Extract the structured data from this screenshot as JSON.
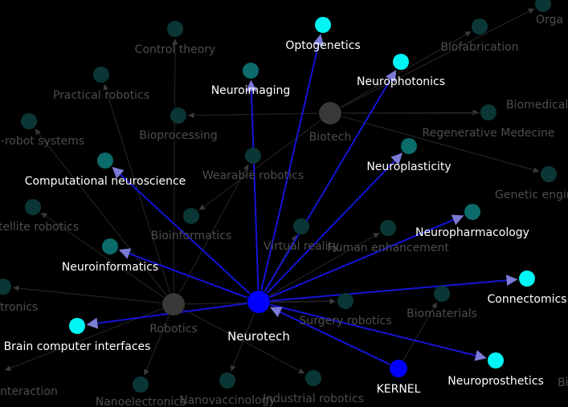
{
  "colors": {
    "background": "#000000",
    "dim_node": "#0b3636",
    "teal_node": "#0c6b6b",
    "cyan_node": "#00f5f5",
    "hub_node": "#383838",
    "focus_node": "#0000ff",
    "focus_edge": "#1414d8",
    "dim_edge": "#222222",
    "bright_text": "#ffffff",
    "dim_text": "#4d4d4d"
  },
  "graph": {
    "focus_node": "Neurotech",
    "nodes": [
      {
        "id": "neurotech",
        "label": "Neurotech",
        "kind": "focus"
      },
      {
        "id": "kernel",
        "label": "KERNEL",
        "kind": "focus-small"
      },
      {
        "id": "optogenetics",
        "label": "Optogenetics",
        "kind": "cyan"
      },
      {
        "id": "neurophotonics",
        "label": "Neurophotonics",
        "kind": "cyan"
      },
      {
        "id": "connectomics",
        "label": "Connectomics",
        "kind": "cyan"
      },
      {
        "id": "neuroprosthetics",
        "label": "Neuroprosthetics",
        "kind": "cyan"
      },
      {
        "id": "bci",
        "label": "Brain computer interfaces",
        "kind": "cyan"
      },
      {
        "id": "neuroimaging",
        "label": "Neuroimaging",
        "kind": "teal"
      },
      {
        "id": "neuroplasticity",
        "label": "Neuroplasticity",
        "kind": "teal"
      },
      {
        "id": "neuropharmacology",
        "label": "Neuropharmacology",
        "kind": "teal"
      },
      {
        "id": "compneuro",
        "label": "Computational neuroscience",
        "kind": "teal"
      },
      {
        "id": "neuroinformatics",
        "label": "Neuroinformatics",
        "kind": "teal"
      },
      {
        "id": "biotech",
        "label": "Biotech",
        "kind": "hub"
      },
      {
        "id": "robotics",
        "label": "Robotics",
        "kind": "hub"
      },
      {
        "id": "control",
        "label": "Control theory",
        "kind": "dim"
      },
      {
        "id": "practical",
        "label": "Practical robotics",
        "kind": "dim"
      },
      {
        "id": "multirobot",
        "label": "i-robot systems",
        "kind": "dim"
      },
      {
        "id": "bioprocessing",
        "label": "Bioprocessing",
        "kind": "dim"
      },
      {
        "id": "wearable",
        "label": "Wearable robotics",
        "kind": "dim"
      },
      {
        "id": "satellite",
        "label": "tellite robotics",
        "kind": "dim"
      },
      {
        "id": "bioinformatics",
        "label": "Bioinformatics",
        "kind": "dim"
      },
      {
        "id": "virtualreality",
        "label": "Virtual reality",
        "kind": "dim"
      },
      {
        "id": "humanenh",
        "label": "Human enhancement",
        "kind": "dim"
      },
      {
        "id": "biofab",
        "label": "Biofabrication",
        "kind": "dim"
      },
      {
        "id": "organ",
        "label": "Orga",
        "kind": "dim"
      },
      {
        "id": "biomedical",
        "label": "Biomedical",
        "kind": "dim"
      },
      {
        "id": "regen",
        "label": "Regenerative Medecine",
        "kind": "dim"
      },
      {
        "id": "genetic",
        "label": "Genetic engin",
        "kind": "dim"
      },
      {
        "id": "surgery",
        "label": "Surgery robotics",
        "kind": "dim"
      },
      {
        "id": "biomaterials",
        "label": "Biomaterials",
        "kind": "dim"
      },
      {
        "id": "tronics",
        "label": "tronics",
        "kind": "dim"
      },
      {
        "id": "interaction",
        "label": "nteraction",
        "kind": "dim"
      },
      {
        "id": "nanoelec",
        "label": "Nanoelectronics",
        "kind": "dim"
      },
      {
        "id": "nanovacc",
        "label": "Nanovaccinology",
        "kind": "dim"
      },
      {
        "id": "industrial",
        "label": "Industrial robotics",
        "kind": "dim"
      },
      {
        "id": "bi_edge",
        "label": "Bi",
        "kind": "dim"
      }
    ],
    "highlighted_edges": [
      {
        "from": "neurotech",
        "to": "optogenetics"
      },
      {
        "from": "neurotech",
        "to": "neurophotonics"
      },
      {
        "from": "neurotech",
        "to": "neuroimaging"
      },
      {
        "from": "neurotech",
        "to": "neuroplasticity"
      },
      {
        "from": "neurotech",
        "to": "neuropharmacology"
      },
      {
        "from": "neurotech",
        "to": "compneuro"
      },
      {
        "from": "neurotech",
        "to": "neuroinformatics"
      },
      {
        "from": "neurotech",
        "to": "connectomics"
      },
      {
        "from": "neurotech",
        "to": "neuroprosthetics"
      },
      {
        "from": "neurotech",
        "to": "bci"
      },
      {
        "from": "kernel",
        "to": "neurotech"
      }
    ],
    "dim_edges": [
      {
        "from": "biotech",
        "to": "bioprocessing"
      },
      {
        "from": "biotech",
        "to": "biofab"
      },
      {
        "from": "biotech",
        "to": "biomedical"
      },
      {
        "from": "biotech",
        "to": "regen"
      },
      {
        "from": "biotech",
        "to": "genetic"
      },
      {
        "from": "biotech",
        "to": "bioinformatics"
      },
      {
        "from": "biotech",
        "to": "organ"
      },
      {
        "from": "robotics",
        "to": "control"
      },
      {
        "from": "robotics",
        "to": "practical"
      },
      {
        "from": "robotics",
        "to": "multirobot"
      },
      {
        "from": "robotics",
        "to": "satellite"
      },
      {
        "from": "robotics",
        "to": "wearable"
      },
      {
        "from": "robotics",
        "to": "tronics"
      },
      {
        "from": "robotics",
        "to": "interaction"
      },
      {
        "from": "robotics",
        "to": "nanoelec"
      },
      {
        "from": "robotics",
        "to": "industrial"
      },
      {
        "from": "robotics",
        "to": "surgery"
      },
      {
        "from": "neurotech",
        "to": "virtualreality"
      },
      {
        "from": "neurotech",
        "to": "humanenh"
      },
      {
        "from": "neurotech",
        "to": "surgery"
      },
      {
        "from": "neurotech",
        "to": "nanovacc"
      },
      {
        "from": "kernel",
        "to": "biomaterials"
      }
    ]
  }
}
